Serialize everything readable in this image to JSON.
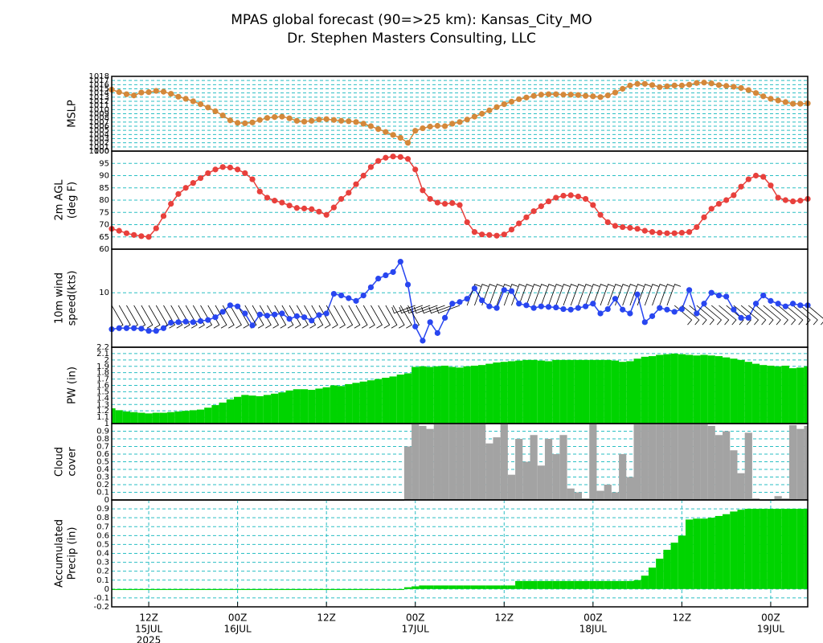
{
  "title": "MPAS global forecast (90=>25 km): Kansas_City_MO",
  "subtitle": "Dr. Stephen Masters Consulting, LLC",
  "time_axis": {
    "x": [
      "2025-07-15T07:00Z",
      "2025-07-15T08:00Z",
      "2025-07-15T09:00Z",
      "2025-07-15T10:00Z",
      "2025-07-15T11:00Z",
      "2025-07-15T12:00Z",
      "2025-07-15T13:00Z",
      "2025-07-15T14:00Z",
      "2025-07-15T15:00Z",
      "2025-07-15T16:00Z",
      "2025-07-15T17:00Z",
      "2025-07-15T18:00Z",
      "2025-07-15T19:00Z",
      "2025-07-15T20:00Z",
      "2025-07-15T21:00Z",
      "2025-07-15T22:00Z",
      "2025-07-15T23:00Z",
      "2025-07-16T00:00Z",
      "2025-07-16T01:00Z",
      "2025-07-16T02:00Z",
      "2025-07-16T03:00Z",
      "2025-07-16T04:00Z",
      "2025-07-16T05:00Z",
      "2025-07-16T06:00Z",
      "2025-07-16T07:00Z",
      "2025-07-16T08:00Z",
      "2025-07-16T09:00Z",
      "2025-07-16T10:00Z",
      "2025-07-16T11:00Z",
      "2025-07-16T12:00Z",
      "2025-07-16T13:00Z",
      "2025-07-16T14:00Z",
      "2025-07-16T15:00Z",
      "2025-07-16T16:00Z",
      "2025-07-16T17:00Z",
      "2025-07-16T18:00Z",
      "2025-07-16T19:00Z",
      "2025-07-16T20:00Z",
      "2025-07-16T21:00Z",
      "2025-07-16T22:00Z",
      "2025-07-16T23:00Z",
      "2025-07-17T00:00Z",
      "2025-07-17T01:00Z",
      "2025-07-17T02:00Z",
      "2025-07-17T03:00Z",
      "2025-07-17T04:00Z",
      "2025-07-17T05:00Z",
      "2025-07-17T06:00Z",
      "2025-07-17T07:00Z",
      "2025-07-17T08:00Z",
      "2025-07-17T09:00Z",
      "2025-07-17T10:00Z",
      "2025-07-17T11:00Z",
      "2025-07-17T12:00Z",
      "2025-07-17T13:00Z",
      "2025-07-17T14:00Z",
      "2025-07-17T15:00Z",
      "2025-07-17T16:00Z",
      "2025-07-17T17:00Z",
      "2025-07-17T18:00Z",
      "2025-07-17T19:00Z",
      "2025-07-17T20:00Z",
      "2025-07-17T21:00Z",
      "2025-07-17T22:00Z",
      "2025-07-17T23:00Z",
      "2025-07-18T00:00Z",
      "2025-07-18T01:00Z",
      "2025-07-18T02:00Z",
      "2025-07-18T03:00Z",
      "2025-07-18T04:00Z",
      "2025-07-18T05:00Z",
      "2025-07-18T06:00Z",
      "2025-07-18T07:00Z",
      "2025-07-18T08:00Z",
      "2025-07-18T09:00Z",
      "2025-07-18T10:00Z",
      "2025-07-18T11:00Z",
      "2025-07-18T12:00Z",
      "2025-07-18T13:00Z",
      "2025-07-18T14:00Z",
      "2025-07-18T15:00Z",
      "2025-07-18T16:00Z",
      "2025-07-18T17:00Z",
      "2025-07-18T18:00Z",
      "2025-07-18T19:00Z",
      "2025-07-18T20:00Z",
      "2025-07-18T21:00Z",
      "2025-07-18T22:00Z",
      "2025-07-18T23:00Z",
      "2025-07-19T00:00Z",
      "2025-07-19T01:00Z",
      "2025-07-19T02:00Z",
      "2025-07-19T03:00Z",
      "2025-07-19T04:00Z",
      "2025-07-19T05:00Z"
    ],
    "xlim": [
      "2025-07-15T07:00Z",
      "2025-07-19T05:00Z"
    ],
    "xticks": [
      {
        "value": "2025-07-15T12:00Z",
        "label": "12Z"
      },
      {
        "value": "2025-07-16T00:00Z",
        "label": "00Z"
      },
      {
        "value": "2025-07-16T12:00Z",
        "label": "12Z"
      },
      {
        "value": "2025-07-17T00:00Z",
        "label": "00Z"
      },
      {
        "value": "2025-07-17T12:00Z",
        "label": "12Z"
      },
      {
        "value": "2025-07-18T00:00Z",
        "label": "00Z"
      },
      {
        "value": "2025-07-18T12:00Z",
        "label": "12Z"
      },
      {
        "value": "2025-07-19T00:00Z",
        "label": "00Z"
      }
    ],
    "date_labels": [
      {
        "value": "2025-07-15T12:00Z",
        "label": "15JUL"
      },
      {
        "value": "2025-07-16T00:00Z",
        "label": "16JUL"
      },
      {
        "value": "2025-07-17T00:00Z",
        "label": "17JUL"
      },
      {
        "value": "2025-07-18T00:00Z",
        "label": "18JUL"
      },
      {
        "value": "2025-07-19T00:00Z",
        "label": "19JUL"
      }
    ],
    "year": "2025"
  },
  "chart_data": [
    {
      "type": "line",
      "ylabel": [
        "MSLP"
      ],
      "color": "#d4883a",
      "grid": true,
      "ylim": [
        1000,
        1018
      ],
      "yticks": [
        1000,
        1001,
        1002,
        1003,
        1004,
        1005,
        1006,
        1007,
        1008,
        1009,
        1010,
        1011,
        1012,
        1013,
        1014,
        1015,
        1016,
        1017,
        1018
      ],
      "values": [
        1014.8,
        1014.2,
        1013.7,
        1013.4,
        1014.1,
        1014.2,
        1014.5,
        1014.3,
        1013.8,
        1013.1,
        1012.6,
        1012.0,
        1011.3,
        1010.5,
        1009.6,
        1008.6,
        1007.4,
        1006.8,
        1006.7,
        1006.9,
        1007.5,
        1008.0,
        1008.2,
        1008.3,
        1007.9,
        1007.3,
        1007.1,
        1007.3,
        1007.6,
        1007.7,
        1007.5,
        1007.3,
        1007.2,
        1007.0,
        1006.6,
        1006.0,
        1005.3,
        1004.6,
        1003.9,
        1003.2,
        1002.0,
        1004.9,
        1005.5,
        1005.9,
        1006.1,
        1006.0,
        1006.6,
        1007.0,
        1007.6,
        1008.3,
        1009.0,
        1009.8,
        1010.6,
        1011.3,
        1011.9,
        1012.5,
        1012.9,
        1013.3,
        1013.6,
        1013.7,
        1013.7,
        1013.6,
        1013.6,
        1013.5,
        1013.3,
        1013.2,
        1013.0,
        1013.4,
        1014.1,
        1015.0,
        1015.8,
        1016.2,
        1016.2,
        1015.9,
        1015.4,
        1015.6,
        1015.8,
        1015.8,
        1016.0,
        1016.4,
        1016.5,
        1016.3,
        1015.9,
        1015.7,
        1015.5,
        1015.2,
        1014.7,
        1014.0,
        1013.2,
        1012.6,
        1012.2,
        1011.8,
        1011.4,
        1011.4,
        1011.5
      ]
    },
    {
      "type": "line",
      "ylabel": [
        "2m AGL",
        "(deg F)"
      ],
      "color": "#e8403c",
      "grid": true,
      "ylim": [
        60,
        100
      ],
      "yticks": [
        60,
        65,
        70,
        75,
        80,
        85,
        90,
        95,
        100
      ],
      "values": [
        68.3,
        67.5,
        66.5,
        65.8,
        65.3,
        65.0,
        68.5,
        73.5,
        78.5,
        82.5,
        85.0,
        87.0,
        89.0,
        91.0,
        92.5,
        93.5,
        93.3,
        92.5,
        91.0,
        88.5,
        83.5,
        81.0,
        79.8,
        79.0,
        77.8,
        76.8,
        76.6,
        76.3,
        75.3,
        74.0,
        77.0,
        80.5,
        83.0,
        86.5,
        90.0,
        93.5,
        96.0,
        97.3,
        97.8,
        97.6,
        96.8,
        92.5,
        84.0,
        80.5,
        79.0,
        78.5,
        78.8,
        78.0,
        71.0,
        67.0,
        66.0,
        65.8,
        65.5,
        66.0,
        68.0,
        70.5,
        73.0,
        75.5,
        77.5,
        79.5,
        81.0,
        81.8,
        82.0,
        81.5,
        80.5,
        78.0,
        74.0,
        71.0,
        69.5,
        69.0,
        68.7,
        68.3,
        67.5,
        67.0,
        66.7,
        66.5,
        66.5,
        66.7,
        67.0,
        69.0,
        73.0,
        76.5,
        78.5,
        80.0,
        82.0,
        85.5,
        88.5,
        90.0,
        89.5,
        86.0,
        81.0,
        80.0,
        79.5,
        79.8,
        80.5
      ]
    },
    {
      "type": "line",
      "ylabel": [
        "10m wind",
        "speed(kts)"
      ],
      "color": "#2846f0",
      "grid": true,
      "ylim": [
        0,
        18
      ],
      "yticks": [
        10
      ],
      "values": [
        3.3,
        3.5,
        3.5,
        3.5,
        3.4,
        3.0,
        3.0,
        3.5,
        4.5,
        4.6,
        4.7,
        4.6,
        4.8,
        5.0,
        5.5,
        6.5,
        7.7,
        7.5,
        6.2,
        4.0,
        6.0,
        5.8,
        6.0,
        6.2,
        5.2,
        5.7,
        5.5,
        4.9,
        5.9,
        6.2,
        9.8,
        9.5,
        9.0,
        8.5,
        9.5,
        11.0,
        12.6,
        13.2,
        13.8,
        15.7,
        11.5,
        3.8,
        1.2,
        4.6,
        2.6,
        5.4,
        8.0,
        8.3,
        8.9,
        10.8,
        8.6,
        7.5,
        7.2,
        10.5,
        10.3,
        8.0,
        7.7,
        7.2,
        7.5,
        7.4,
        7.3,
        7.0,
        6.9,
        7.2,
        7.5,
        8.0,
        6.2,
        7.0,
        8.9,
        6.9,
        6.2,
        9.7,
        4.6,
        5.7,
        7.2,
        6.9,
        6.5,
        7.0,
        10.5,
        6.2,
        8.0,
        10.0,
        9.5,
        9.3,
        6.9,
        5.4,
        5.4,
        8.0,
        9.5,
        8.5,
        8.0,
        7.5,
        8.0,
        7.7,
        7.7
      ],
      "directions": [
        150,
        150,
        150,
        150,
        150,
        150,
        150,
        150,
        150,
        150,
        150,
        150,
        150,
        150,
        150,
        150,
        150,
        150,
        150,
        150,
        150,
        150,
        150,
        150,
        150,
        150,
        150,
        150,
        150,
        150,
        150,
        150,
        150,
        150,
        150,
        150,
        150,
        150,
        150,
        150,
        150,
        250,
        250,
        250,
        250,
        250,
        250,
        250,
        20,
        20,
        20,
        20,
        20,
        20,
        20,
        20,
        20,
        20,
        20,
        20,
        20,
        20,
        20,
        20,
        20,
        20,
        20,
        20,
        20,
        20,
        20,
        20,
        20,
        20,
        20,
        20,
        130,
        130,
        130,
        130,
        130,
        130,
        130,
        130,
        130,
        130,
        130,
        130,
        130,
        130,
        130,
        130,
        130,
        130,
        130
      ]
    },
    {
      "type": "bar",
      "ylabel": [
        "PW (in)"
      ],
      "color": "#00d400",
      "grid": true,
      "ylim": [
        1,
        2.2
      ],
      "yticks": [
        1,
        1.1,
        1.2,
        1.3,
        1.4,
        1.5,
        1.6,
        1.7,
        1.8,
        1.9,
        2,
        2.1,
        2.2
      ],
      "values": [
        1.24,
        1.21,
        1.19,
        1.18,
        1.17,
        1.16,
        1.17,
        1.17,
        1.18,
        1.19,
        1.2,
        1.21,
        1.22,
        1.25,
        1.29,
        1.33,
        1.38,
        1.42,
        1.45,
        1.44,
        1.43,
        1.45,
        1.47,
        1.49,
        1.52,
        1.54,
        1.54,
        1.53,
        1.55,
        1.57,
        1.6,
        1.59,
        1.62,
        1.64,
        1.66,
        1.68,
        1.7,
        1.72,
        1.74,
        1.77,
        1.79,
        1.89,
        1.9,
        1.89,
        1.9,
        1.91,
        1.89,
        1.88,
        1.9,
        1.91,
        1.92,
        1.94,
        1.96,
        1.97,
        1.98,
        1.99,
        2.0,
        2.0,
        1.99,
        1.98,
        2.0,
        2.0,
        2.0,
        2.0,
        2.0,
        2.0,
        2.0,
        2.0,
        1.99,
        1.97,
        1.98,
        2.02,
        2.05,
        2.06,
        2.08,
        2.09,
        2.1,
        2.09,
        2.08,
        2.07,
        2.08,
        2.07,
        2.06,
        2.04,
        2.02,
        2.0,
        1.97,
        1.94,
        1.92,
        1.91,
        1.9,
        1.91,
        1.87,
        1.88,
        1.9
      ]
    },
    {
      "type": "bar",
      "ylabel": [
        "Cloud",
        "cover"
      ],
      "color": "#a3a3a3",
      "grid": true,
      "ylim": [
        0,
        1
      ],
      "yticks": [
        0,
        0.1,
        0.2,
        0.3,
        0.4,
        0.5,
        0.6,
        0.7,
        0.8,
        0.9
      ],
      "values": [
        0,
        0,
        0,
        0,
        0,
        0,
        0,
        0,
        0,
        0,
        0,
        0,
        0,
        0,
        0,
        0,
        0,
        0,
        0,
        0,
        0,
        0,
        0,
        0.01,
        0,
        0,
        0,
        0,
        0,
        0,
        0,
        0,
        0,
        0,
        0,
        0,
        0,
        0,
        0,
        0,
        0.7,
        1,
        0.97,
        0.93,
        1,
        1,
        1,
        1,
        1,
        1,
        1,
        0.74,
        0.82,
        1,
        0.33,
        0.8,
        0.5,
        0.85,
        0.45,
        0.8,
        0.6,
        0.85,
        0.15,
        0.1,
        0.02,
        1,
        0.12,
        0.2,
        0.1,
        0.6,
        0.3,
        1,
        1,
        1,
        1,
        1,
        1,
        1,
        1,
        1,
        1,
        0.97,
        0.85,
        0.9,
        0.65,
        0.35,
        0.88,
        0.02,
        0,
        0,
        0.05,
        0.02,
        0.98,
        0.93,
        0.97
      ]
    },
    {
      "type": "bar",
      "ylabel": [
        "Accumulated",
        "Precip (in)"
      ],
      "color": "#00d400",
      "grid": true,
      "xgrid": true,
      "ylim": [
        -0.2,
        1
      ],
      "yticks": [
        -0.2,
        -0.1,
        0,
        0.1,
        0.2,
        0.3,
        0.4,
        0.5,
        0.6,
        0.7,
        0.8,
        0.9
      ],
      "values": [
        0,
        0,
        0,
        0,
        0,
        0,
        0,
        0,
        0,
        0,
        0,
        0,
        0,
        0,
        0,
        0,
        0,
        0,
        0,
        0,
        0,
        0,
        0,
        0,
        0,
        0,
        0,
        0,
        0,
        0,
        0,
        0,
        0,
        0,
        0,
        0,
        0,
        0,
        0,
        0,
        0.02,
        0.03,
        0.04,
        0.04,
        0.04,
        0.04,
        0.04,
        0.04,
        0.04,
        0.04,
        0.04,
        0.04,
        0.04,
        0.04,
        0.04,
        0.09,
        0.09,
        0.09,
        0.09,
        0.09,
        0.09,
        0.09,
        0.09,
        0.09,
        0.09,
        0.09,
        0.09,
        0.09,
        0.09,
        0.09,
        0.09,
        0.1,
        0.15,
        0.24,
        0.34,
        0.44,
        0.52,
        0.6,
        0.78,
        0.79,
        0.79,
        0.8,
        0.82,
        0.84,
        0.87,
        0.89,
        0.9,
        0.9,
        0.9,
        0.9,
        0.9,
        0.9,
        0.9,
        0.9,
        0.9
      ]
    }
  ]
}
